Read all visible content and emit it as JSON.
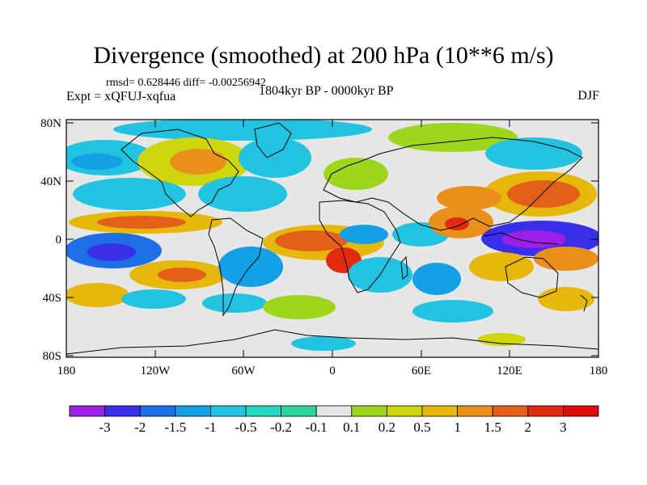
{
  "title": "Divergence (smoothed) at 200 hPa (10**6 m/s)",
  "stats": "rmsd= 0.628446 diff= -0.00256942",
  "experiment": "Expt = xQFUJ-xqfua",
  "period": "1804kyr BP - 0000kyr BP",
  "season": "DJF",
  "axes": {
    "lat_ticks": [
      "80N",
      "40N",
      "0",
      "40S",
      "80S"
    ],
    "lon_ticks": [
      "180",
      "120W",
      "60W",
      "0",
      "60E",
      "120E",
      "180"
    ]
  },
  "colorbar": {
    "labels": [
      "-3",
      "-2",
      "-1.5",
      "-1",
      "-0.5",
      "-0.2",
      "-0.1",
      "0.1",
      "0.2",
      "0.5",
      "1",
      "1.5",
      "2",
      "3"
    ],
    "colors": [
      "#9d1ee6",
      "#3a2fe8",
      "#1d6fe6",
      "#14a0e6",
      "#22c3e0",
      "#25d8c3",
      "#2fd49a",
      "#e6e6e6",
      "#9ed61b",
      "#cfd60e",
      "#e6b80c",
      "#e8901a",
      "#e46018",
      "#e22a10",
      "#e00c0c"
    ]
  }
}
